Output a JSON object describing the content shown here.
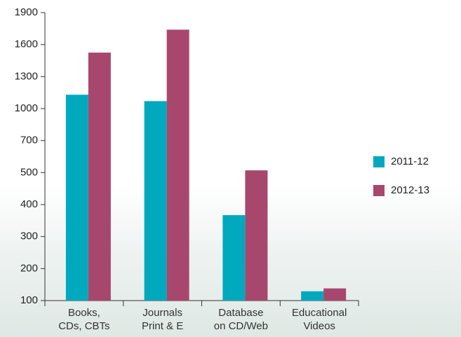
{
  "chart_data": {
    "type": "bar",
    "categories": [
      "Books,\nCDs, CBTs",
      "Journals\nPrint & E",
      "Database\non CD/Web",
      "Educational\nVideos"
    ],
    "series": [
      {
        "name": "2011-12",
        "color": "#00a9bd",
        "values": [
          1130,
          1070,
          367,
          129
        ]
      },
      {
        "name": "2012-13",
        "color": "#a8476d",
        "values": [
          1525,
          1740,
          514,
          138
        ]
      }
    ],
    "ylim": [
      100,
      1900
    ],
    "yticks": [
      100,
      200,
      300,
      400,
      500,
      700,
      1000,
      1300,
      1600,
      1900
    ],
    "legend": "right"
  }
}
